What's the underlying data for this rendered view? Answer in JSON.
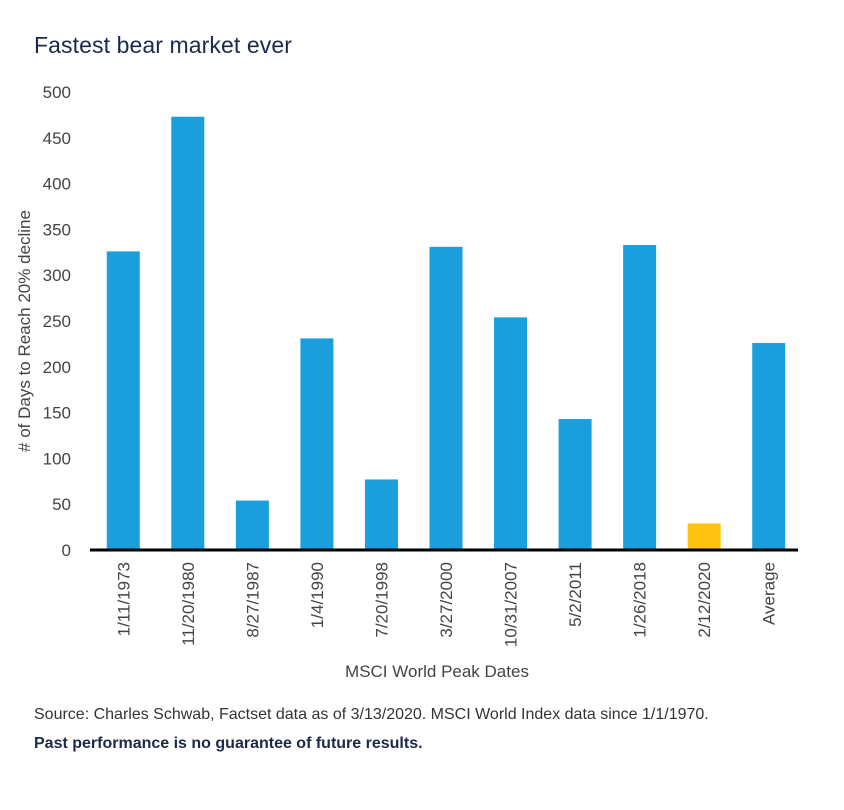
{
  "title": "Fastest bear market ever",
  "chart_data": {
    "type": "bar",
    "title": "Fastest bear market ever",
    "xlabel": "MSCI World Peak Dates",
    "ylabel": "# of Days to Reach 20% decline",
    "categories": [
      "1/11/1973",
      "11/20/1980",
      "8/27/1987",
      "1/4/1990",
      "7/20/1998",
      "3/27/2000",
      "10/31/2007",
      "5/2/2011",
      "1/26/2018",
      "2/12/2020",
      "Average"
    ],
    "values": [
      326,
      473,
      54,
      231,
      77,
      331,
      254,
      143,
      333,
      29,
      226
    ],
    "highlight_index": 9,
    "ylim": [
      0,
      500
    ],
    "yticks": [
      0,
      50,
      100,
      150,
      200,
      250,
      300,
      350,
      400,
      450,
      500
    ],
    "grid": false,
    "colors": {
      "bar": "#1a9fdc",
      "highlight": "#ffc20e",
      "axis": "#000000",
      "text": "#444444"
    }
  },
  "footer": {
    "source": "Source: Charles Schwab, Factset data as of 3/13/2020. MSCI World Index data since 1/1/1970.",
    "disclaimer": "Past performance is no guarantee of future results."
  }
}
